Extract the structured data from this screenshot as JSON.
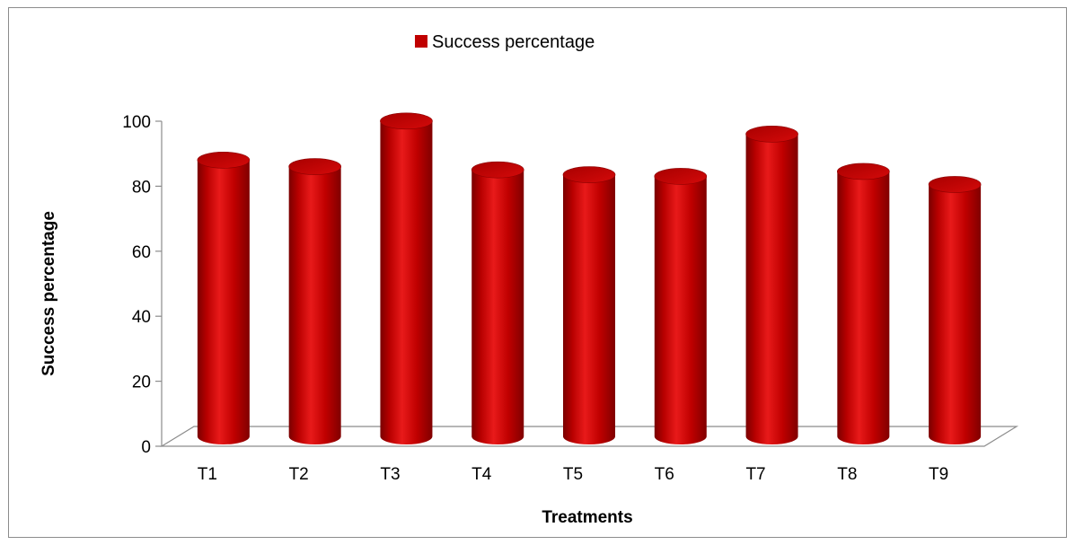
{
  "chart_data": {
    "type": "bar",
    "style": "3d-cylinder",
    "categories": [
      "T1",
      "T2",
      "T3",
      "T4",
      "T5",
      "T6",
      "T7",
      "T8",
      "T9"
    ],
    "series": [
      {
        "name": "Success percentage",
        "values": [
          85,
          83,
          97,
          82,
          80.5,
          80,
          93,
          81.5,
          77.5
        ]
      }
    ],
    "title": "",
    "xlabel": "Treatments",
    "ylabel": "Success percentage",
    "ylim": [
      0,
      100
    ],
    "yticks": [
      0,
      20,
      40,
      60,
      80,
      100
    ],
    "grid": false,
    "legend_position": "top-center",
    "colors": {
      "bar": "#c00000",
      "bar_dark": "#7a0000",
      "bar_light": "#e81a1a",
      "floor": "#8c8c8c"
    }
  }
}
